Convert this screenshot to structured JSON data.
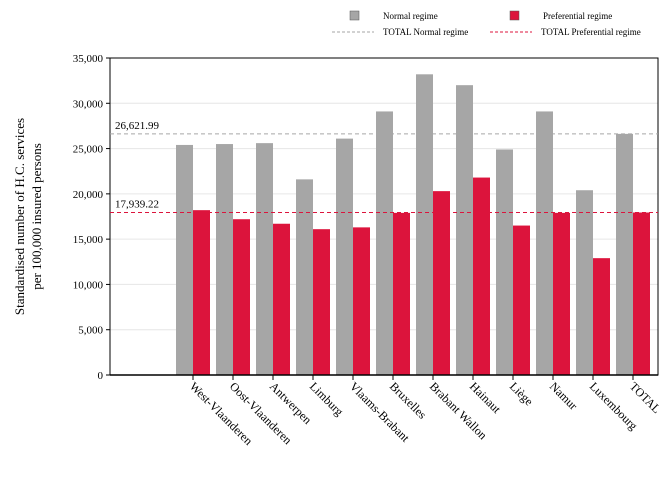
{
  "chart_data": {
    "type": "bar",
    "title": "",
    "xlabel": "",
    "ylabel_lines": [
      "Standardised number of H.C. services",
      "per 100,000 insured persons"
    ],
    "categories": [
      "West-Vlaanderen",
      "Oost-Vlaanderen",
      "Antwerpen",
      "Limburg",
      "Vlaams-Brabant",
      "Bruxelles",
      "Brabant Wallon",
      "Hainaut",
      "Liège",
      "Namur",
      "Luxembourg",
      "TOTAL"
    ],
    "series": [
      {
        "name": "Normal regime",
        "color": "#a6a6a6",
        "values": [
          25400,
          25500,
          25600,
          21600,
          26100,
          29100,
          33200,
          32000,
          24900,
          29100,
          20400,
          26622
        ]
      },
      {
        "name": "Preferential regime",
        "color": "#dc143c",
        "values": [
          18200,
          17200,
          16700,
          16100,
          16300,
          17900,
          20300,
          21800,
          16500,
          17900,
          12900,
          17939
        ]
      }
    ],
    "reference_lines": [
      {
        "name": "TOTAL Normal regime",
        "value": 26621.99,
        "label": "26,621.99",
        "color": "#a6a6a6",
        "style": "dashed"
      },
      {
        "name": "TOTAL Preferential regime",
        "value": 17939.22,
        "label": "17,939.22",
        "color": "#dc143c",
        "style": "dashed"
      }
    ],
    "ylim": [
      0,
      35000
    ],
    "yticks": [
      0,
      5000,
      10000,
      15000,
      20000,
      25000,
      30000,
      35000
    ],
    "ytick_labels": [
      "0",
      "5,000",
      "10,000",
      "15,000",
      "20,000",
      "25,000",
      "30,000",
      "35,000"
    ],
    "grid": "horizontal",
    "legend_position": "top"
  }
}
